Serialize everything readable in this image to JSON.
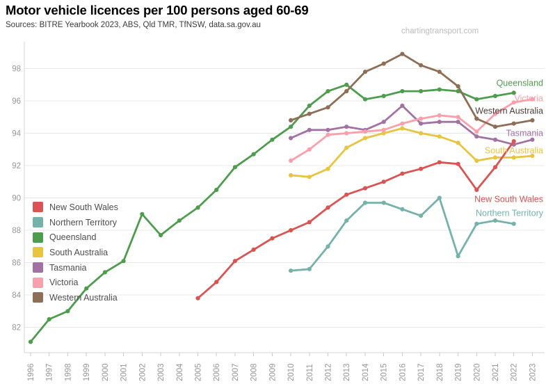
{
  "header": {
    "title": "Motor vehicle licences per 100 persons aged 60-69",
    "sources": "Sources: BITRE Yearbook 2023, ABS, Qld TMR, TfNSW, data.sa.gov.au",
    "watermark": "chartingtransport.com"
  },
  "chart_data": {
    "type": "line",
    "title": "Motor vehicle licences per 100 persons aged 60-69",
    "xlabel": "",
    "ylabel": "",
    "grid": true,
    "legend_position": "left-middle",
    "x_ticks": [
      1996,
      1997,
      1998,
      1999,
      2000,
      2001,
      2002,
      2003,
      2004,
      2005,
      2006,
      2007,
      2008,
      2009,
      2010,
      2011,
      2012,
      2013,
      2014,
      2015,
      2016,
      2017,
      2018,
      2019,
      2020,
      2021,
      2022,
      2023
    ],
    "y_ticks": [
      82,
      84,
      86,
      88,
      90,
      92,
      94,
      96,
      98
    ],
    "ylim": [
      80.5,
      99.5
    ],
    "draw_order": [
      3,
      4,
      5,
      2,
      6,
      1,
      0
    ],
    "series": [
      {
        "name": "New South Wales",
        "color": "#d95452",
        "start_year": 2005,
        "values": [
          83.8,
          84.8,
          86.1,
          86.8,
          87.5,
          88.0,
          88.5,
          89.4,
          90.2,
          90.6,
          91.0,
          91.5,
          91.8,
          92.2,
          92.1,
          90.5,
          91.9,
          93.5
        ],
        "label": {
          "x": 781,
          "y": 286,
          "color": "#d95452"
        }
      },
      {
        "name": "Northern Territory",
        "color": "#74b2aa",
        "start_year": 2010,
        "values": [
          85.5,
          85.6,
          87.0,
          88.6,
          89.7,
          89.7,
          89.3,
          88.9,
          90.0,
          86.4,
          88.4,
          88.6,
          88.4
        ],
        "label": {
          "x": 781,
          "y": 306,
          "color": "#74b2aa"
        }
      },
      {
        "name": "Queensland",
        "color": "#4e9d4e",
        "start_year": 1996,
        "values": [
          81.1,
          82.5,
          83.0,
          84.4,
          85.4,
          86.1,
          89.0,
          87.7,
          88.6,
          89.4,
          90.5,
          91.9,
          92.7,
          93.6,
          94.4,
          95.7,
          96.6,
          97.0,
          96.1,
          96.3,
          96.6,
          96.6,
          96.7,
          96.6,
          96.1,
          96.3,
          96.5
        ],
        "label": {
          "x": 781,
          "y": 119,
          "color": "#4e9d4e"
        }
      },
      {
        "name": "South Australia",
        "color": "#e8c440",
        "start_year": 2010,
        "values": [
          91.4,
          91.3,
          91.8,
          93.1,
          93.7,
          94.0,
          94.3,
          94.0,
          93.8,
          93.4,
          92.3,
          92.5,
          92.5,
          92.6
        ],
        "label": {
          "x": 781,
          "y": 216,
          "color": "#e8c440"
        }
      },
      {
        "name": "Tasmania",
        "color": "#a172a3",
        "start_year": 2010,
        "values": [
          93.7,
          94.2,
          94.2,
          94.4,
          94.2,
          94.7,
          95.7,
          94.6,
          94.7,
          94.7,
          93.8,
          93.6,
          93.3,
          93.6
        ],
        "label": {
          "x": 781,
          "y": 191,
          "color": "#a172a3"
        }
      },
      {
        "name": "Victoria",
        "color": "#f9a0ac",
        "start_year": 2010,
        "values": [
          92.3,
          93.0,
          93.9,
          94.0,
          94.1,
          94.2,
          94.6,
          94.9,
          95.1,
          95.0,
          94.1,
          95.2,
          95.9,
          96.1
        ],
        "label": {
          "x": 781,
          "y": 141,
          "color": "#f9a0ac"
        }
      },
      {
        "name": "Western Australia",
        "color": "#8f6e56",
        "start_year": 2010,
        "values": [
          94.8,
          95.2,
          95.6,
          96.6,
          97.8,
          98.3,
          98.9,
          98.2,
          97.8,
          96.9,
          94.9,
          94.4,
          94.6,
          94.8
        ],
        "label": {
          "x": 781,
          "y": 159,
          "color": "#4a4038"
        }
      }
    ]
  },
  "style": {
    "grid_color": "#e8e8e8",
    "axis_line_color": "#d6d6d6",
    "tick_color": "#c9c9c9",
    "axis_text_color": "#979797"
  }
}
